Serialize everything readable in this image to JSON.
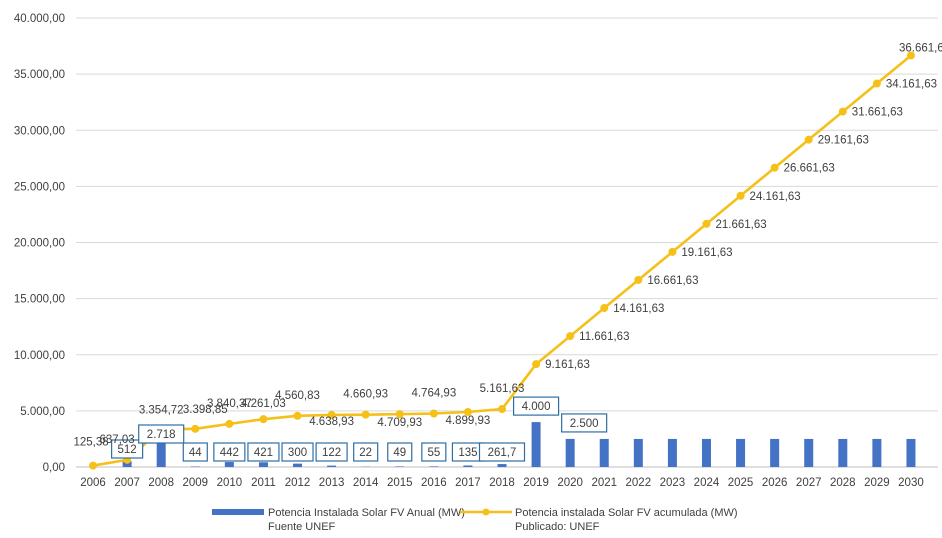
{
  "chart_data": {
    "type": "bar",
    "categories": [
      "2006",
      "2007",
      "2008",
      "2009",
      "2010",
      "2011",
      "2012",
      "2013",
      "2014",
      "2015",
      "2016",
      "2017",
      "2018",
      "2019",
      "2020",
      "2021",
      "2022",
      "2023",
      "2024",
      "2025",
      "2026",
      "2027",
      "2028",
      "2029",
      "2030"
    ],
    "ylim": [
      0,
      40000
    ],
    "y_ticks": [
      "0,00",
      "5.000,00",
      "10.000,00",
      "15.000,00",
      "20.000,00",
      "25.000,00",
      "30.000,00",
      "35.000,00",
      "40.000,00"
    ],
    "grid": true,
    "legend_position": "bottom",
    "series": [
      {
        "name": "Potencia Instalada Solar FV Anual (MW)",
        "type": "bar",
        "color": "#4472C4",
        "values": [
          0,
          512,
          2718,
          44,
          442,
          421,
          300,
          122,
          22,
          49,
          55,
          135,
          261.7,
          4000,
          2500,
          2500,
          2500,
          2500,
          2500,
          2500,
          2500,
          2500,
          2500,
          2500,
          2500
        ],
        "labels": [
          "",
          "512",
          "2.718",
          "44",
          "442",
          "421",
          "300",
          "122",
          "22",
          "49",
          "55",
          "135",
          "261,7",
          "4.000",
          "2.500",
          "",
          "",
          "",
          "",
          "",
          "",
          "",
          "",
          "",
          ""
        ]
      },
      {
        "name": "Potencia instalada Solar FV acumulada (MW)",
        "type": "line",
        "color": "#F5C018",
        "values": [
          125.38,
          637.03,
          3354.72,
          3398.85,
          3840.37,
          4261.03,
          4560.83,
          4638.93,
          4660.93,
          4709.93,
          4764.93,
          4899.93,
          5161.63,
          9161.63,
          11661.63,
          14161.63,
          16661.63,
          19161.63,
          21661.63,
          24161.63,
          26661.63,
          29161.63,
          31661.63,
          34161.63,
          36661.63
        ],
        "labels": [
          "125,38",
          "637,03",
          "3.354,72",
          "3.398,85",
          "3.840,37",
          "4.261,03",
          "4.560,83",
          "4.638,93",
          "4.660,93",
          "4.709,93",
          "4.764,93",
          "4.899,93",
          "5.161,63",
          "9.161,63",
          "11.661,63",
          "14.161,63",
          "16.661,63",
          "19.161,63",
          "21.661,63",
          "24.161,63",
          "26.661,63",
          "29.161,63",
          "31.661,63",
          "34.161,63",
          "36.661,63"
        ]
      }
    ],
    "legend": {
      "bar_sub": "Fuente UNEF",
      "line_sub": "Publicado: UNEF"
    }
  }
}
